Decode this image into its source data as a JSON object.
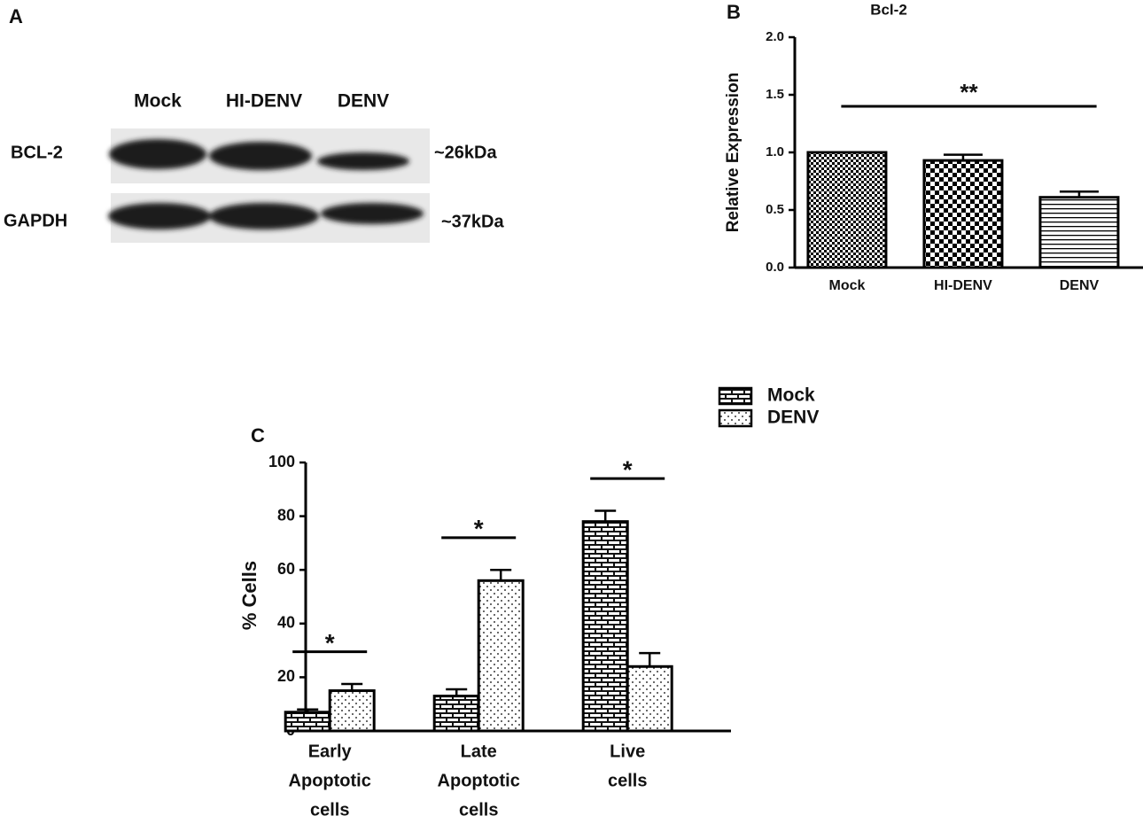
{
  "blot": {
    "panel_label": "A",
    "lanes": [
      "Mock",
      "HI-DENV",
      "DENV"
    ],
    "rows": [
      {
        "name": "BCL-2",
        "size": "~26kDa"
      },
      {
        "name": "GAPDH",
        "size": "~37kDa"
      }
    ]
  },
  "chart_data": [
    {
      "type": "bar",
      "panel_label": "B",
      "title": "Bcl-2",
      "ylabel": "Relative Expression",
      "categories": [
        "Mock",
        "HI-DENV",
        "DENV"
      ],
      "values": [
        1.0,
        0.93,
        0.61
      ],
      "errors": [
        0,
        0.05,
        0.05
      ],
      "patterns": [
        "checker-fine",
        "checker",
        "hlines"
      ],
      "color": "#000000",
      "ylim": [
        0,
        2
      ],
      "yticks": [
        {
          "value": 0,
          "label": "0.0"
        },
        {
          "value": 0.5,
          "label": "0.5"
        },
        {
          "value": 1,
          "label": "1.0"
        },
        {
          "value": 1.5,
          "label": "1.5"
        },
        {
          "value": 2,
          "label": "2.0"
        }
      ],
      "significance": "**"
    },
    {
      "type": "grouped-bar",
      "panel_label": "C",
      "ylabel": "% Cells",
      "categories": [
        [
          "Early",
          "Apoptotic",
          "cells"
        ],
        [
          "Late",
          "Apoptotic",
          "cells"
        ],
        [
          "Live",
          "cells"
        ]
      ],
      "series": [
        {
          "name": "Mock",
          "color": "#000000",
          "pattern": "brick",
          "values": [
            7,
            13,
            78
          ],
          "errors": [
            1,
            2.5,
            4
          ]
        },
        {
          "name": "DENV",
          "color": "#000000",
          "pattern": "dots",
          "values": [
            15,
            56,
            24
          ],
          "errors": [
            2.5,
            4,
            5
          ]
        }
      ],
      "ylim": [
        0,
        100
      ],
      "yticks": [
        0,
        20,
        40,
        60,
        80,
        100
      ],
      "significance": [
        "*",
        "*",
        "*"
      ]
    }
  ]
}
